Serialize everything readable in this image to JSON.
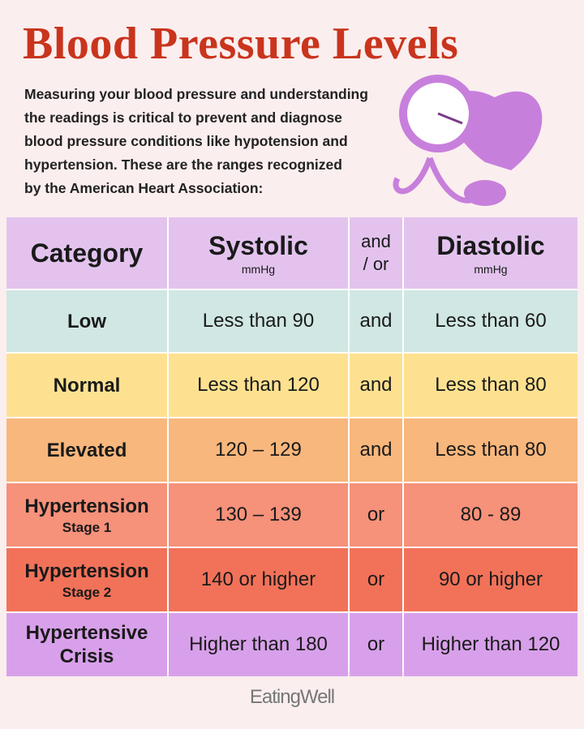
{
  "title": "Blood Pressure Levels",
  "intro": [
    "Measuring your blood pressure and understanding",
    "the readings is critical to prevent and diagnose",
    "blood pressure conditions like hypotension and",
    "hypertension. These are the ranges recognized",
    "by the American Heart Association:"
  ],
  "table": {
    "header": {
      "category": "Category",
      "systolic": "Systolic",
      "systolic_unit": "mmHg",
      "conj": [
        "and",
        "/ or"
      ],
      "diastolic": "Diastolic",
      "diastolic_unit": "mmHg"
    },
    "rows": [
      {
        "category": "Low",
        "systolic": "Less than 90",
        "conj": "and",
        "diastolic": "Less than 60"
      },
      {
        "category": "Normal",
        "systolic": "Less than 120",
        "conj": "and",
        "diastolic": "Less than 80"
      },
      {
        "category": "Elevated",
        "systolic": "120 – 129",
        "conj": "and",
        "diastolic": "Less than 80"
      },
      {
        "category": "Hypertension",
        "stage": "Stage 1",
        "systolic": "130 – 139",
        "conj": "or",
        "diastolic": "80 - 89"
      },
      {
        "category": "Hypertension",
        "stage": "Stage 2",
        "systolic": "140 or higher",
        "conj": "or",
        "diastolic": "90 or higher"
      },
      {
        "category": "Hypertensive Crisis",
        "systolic": "Higher than 180",
        "conj": "or",
        "diastolic": "Higher than 120"
      }
    ]
  },
  "footer": "EatingWell"
}
